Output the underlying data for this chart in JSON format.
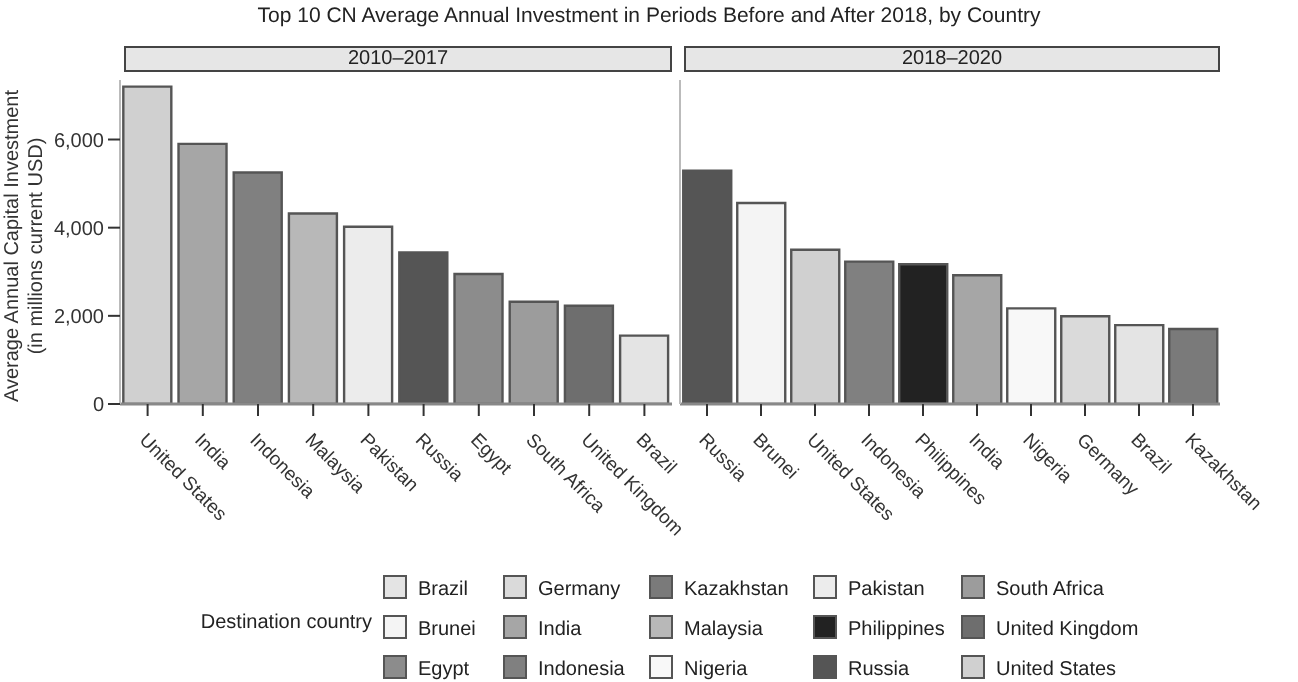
{
  "chart_data": [
    {
      "type": "bar",
      "title": "Top 10 CN Average Annual Investment in Periods Before and After 2018, by Country",
      "subtitle": "2010–2017",
      "ylabel": "Average Annual Capital Investment\n(in millions current USD)",
      "legend_title": "Destination country",
      "legend": "bottom",
      "categories": [
        "United States",
        "India",
        "Indonesia",
        "Malaysia",
        "Pakistan",
        "Russia",
        "Egypt",
        "South Africa",
        "United Kingdom",
        "Brazil"
      ],
      "series": [
        {
          "name": "United States",
          "color": "#d0d0d0",
          "values": [
            7200,
            null,
            null,
            null,
            null,
            null,
            null,
            null,
            null,
            null
          ]
        },
        {
          "name": "India",
          "color": "#a6a6a6",
          "values": [
            null,
            5900,
            null,
            null,
            null,
            null,
            null,
            null,
            null,
            null
          ]
        },
        {
          "name": "Indonesia",
          "color": "#808080",
          "values": [
            null,
            null,
            5250,
            null,
            null,
            null,
            null,
            null,
            null,
            null
          ]
        },
        {
          "name": "Malaysia",
          "color": "#b8b8b8",
          "values": [
            null,
            null,
            null,
            4320,
            null,
            null,
            null,
            null,
            null,
            null
          ]
        },
        {
          "name": "Pakistan",
          "color": "#ececec",
          "values": [
            null,
            null,
            null,
            null,
            4020,
            null,
            null,
            null,
            null,
            null
          ]
        },
        {
          "name": "Russia",
          "color": "#555555",
          "values": [
            null,
            null,
            null,
            null,
            null,
            3440,
            null,
            null,
            null,
            null
          ]
        },
        {
          "name": "Egypt",
          "color": "#8c8c8c",
          "values": [
            null,
            null,
            null,
            null,
            null,
            null,
            2950,
            null,
            null,
            null
          ]
        },
        {
          "name": "South Africa",
          "color": "#9c9c9c",
          "values": [
            null,
            null,
            null,
            null,
            null,
            null,
            null,
            2320,
            null,
            null
          ]
        },
        {
          "name": "United Kingdom",
          "color": "#6e6e6e",
          "values": [
            null,
            null,
            null,
            null,
            null,
            null,
            null,
            null,
            2230,
            null
          ]
        },
        {
          "name": "Brazil",
          "color": "#e4e4e4",
          "values": [
            null,
            null,
            null,
            null,
            null,
            null,
            null,
            null,
            null,
            1550
          ]
        }
      ],
      "ylim": [
        0,
        7350
      ],
      "yticks": [
        {
          "value": 0,
          "label": "0"
        },
        {
          "value": 2000,
          "label": "2,000"
        },
        {
          "value": 4000,
          "label": "4,000"
        },
        {
          "value": 6000,
          "label": "6,000"
        }
      ],
      "grid": false
    },
    {
      "type": "bar",
      "subtitle": "2018–2020",
      "legend": "bottom",
      "categories": [
        "Russia",
        "Brunei",
        "United States",
        "Indonesia",
        "Philippines",
        "India",
        "Nigeria",
        "Germany",
        "Brazil",
        "Kazakhstan"
      ],
      "series": [
        {
          "name": "Russia",
          "color": "#555555",
          "values": [
            5290,
            null,
            null,
            null,
            null,
            null,
            null,
            null,
            null,
            null
          ]
        },
        {
          "name": "Brunei",
          "color": "#f4f4f4",
          "values": [
            null,
            4560,
            null,
            null,
            null,
            null,
            null,
            null,
            null,
            null
          ]
        },
        {
          "name": "United States",
          "color": "#d0d0d0",
          "values": [
            null,
            null,
            3500,
            null,
            null,
            null,
            null,
            null,
            null,
            null
          ]
        },
        {
          "name": "Indonesia",
          "color": "#808080",
          "values": [
            null,
            null,
            null,
            3230,
            null,
            null,
            null,
            null,
            null,
            null
          ]
        },
        {
          "name": "Philippines",
          "color": "#222222",
          "values": [
            null,
            null,
            null,
            null,
            3170,
            null,
            null,
            null,
            null,
            null
          ]
        },
        {
          "name": "India",
          "color": "#a6a6a6",
          "values": [
            null,
            null,
            null,
            null,
            null,
            2920,
            null,
            null,
            null,
            null
          ]
        },
        {
          "name": "Nigeria",
          "color": "#f8f8f8",
          "values": [
            null,
            null,
            null,
            null,
            null,
            null,
            2170,
            null,
            null,
            null
          ]
        },
        {
          "name": "Germany",
          "color": "#dadada",
          "values": [
            null,
            null,
            null,
            null,
            null,
            null,
            null,
            1990,
            null,
            null
          ]
        },
        {
          "name": "Brazil",
          "color": "#e4e4e4",
          "values": [
            null,
            null,
            null,
            null,
            null,
            null,
            null,
            null,
            1790,
            null
          ]
        },
        {
          "name": "Kazakhstan",
          "color": "#7a7a7a",
          "values": [
            null,
            null,
            null,
            null,
            null,
            null,
            null,
            null,
            null,
            1700
          ]
        }
      ],
      "ylim": [
        0,
        7350
      ],
      "tick_labels": "x",
      "grid": false
    }
  ]
}
